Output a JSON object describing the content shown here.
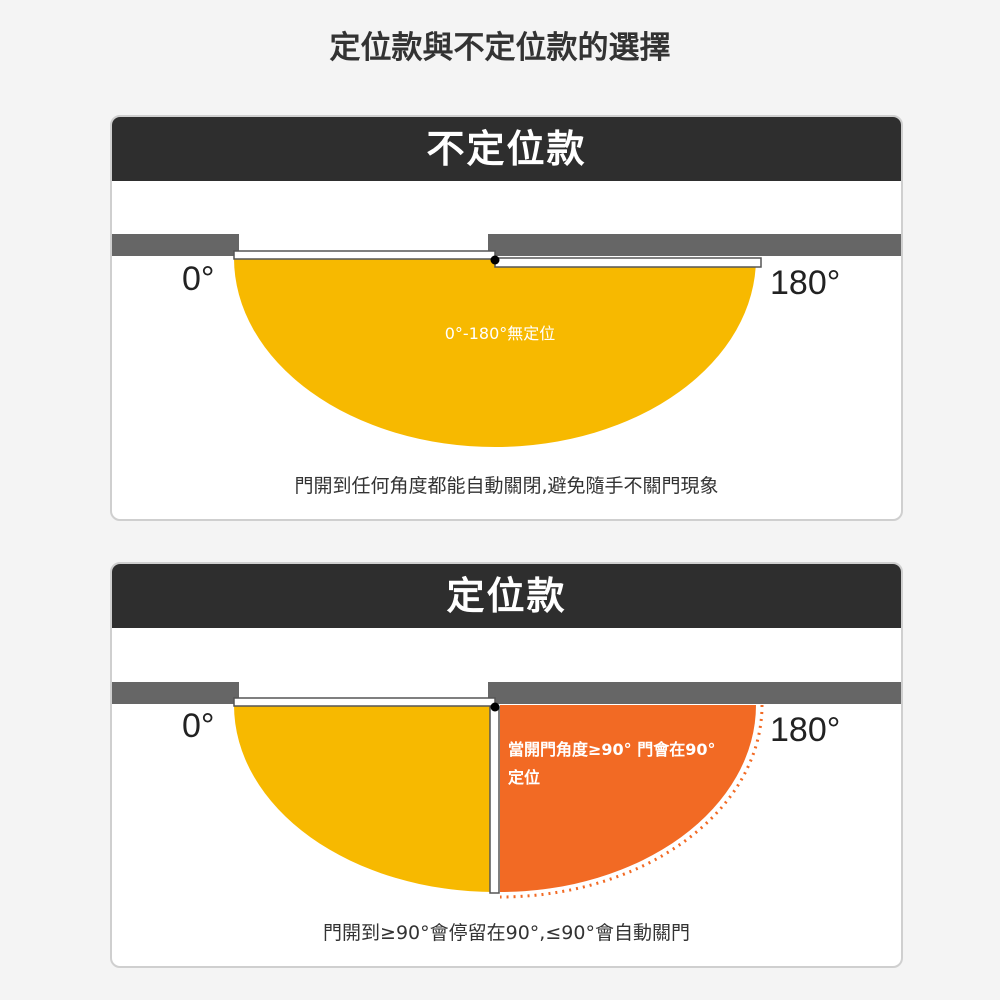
{
  "title": "定位款與不定位款的選擇",
  "colors": {
    "header": "#2e2e2e",
    "wall": "#666666",
    "yellow": "#f7b900",
    "orange": "#f26a24"
  },
  "panels": [
    {
      "header": "不定位款",
      "label_start": "0°",
      "label_end": "180°",
      "area_label": "0°-180°無定位",
      "caption": "門開到任何角度都能自動關閉,避免隨手不關門現象"
    },
    {
      "header": "定位款",
      "label_start": "0°",
      "label_end": "180°",
      "area_label_line1": "當開門角度≥90° 門會在90°",
      "area_label_line2": "定位",
      "caption": "門開到≥90°會停留在90°,≤90°會自動關門"
    }
  ]
}
